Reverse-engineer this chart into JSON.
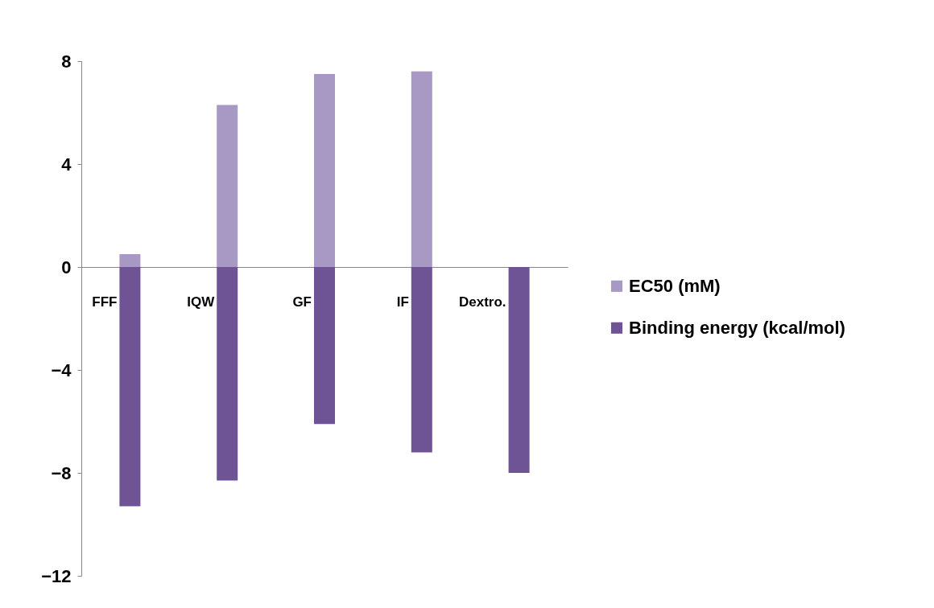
{
  "chart_data": {
    "type": "bar",
    "stacked": true,
    "categories": [
      "FFF",
      "IQW",
      "GF",
      "IF",
      "Dextro."
    ],
    "series": [
      {
        "name": "EC50 (mM)",
        "color": "#a898c4",
        "values": [
          0.5,
          6.3,
          7.5,
          7.6,
          null
        ]
      },
      {
        "name": "Binding energy (kcal/mol)",
        "color": "#6e5494",
        "values": [
          -9.3,
          -8.3,
          -6.1,
          -7.2,
          -8.0
        ]
      }
    ],
    "ylim": [
      -12,
      8
    ],
    "yticks": [
      -12,
      -8,
      -4,
      0,
      4,
      8
    ],
    "grid": false,
    "legend": "right"
  }
}
